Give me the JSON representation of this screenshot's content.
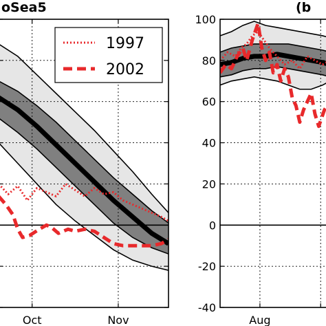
{
  "chart_data": [
    {
      "type": "line",
      "title": "oSea5",
      "xlabel": "",
      "ylabel": "",
      "x_tick_labels": [
        "Oct",
        "Nov"
      ],
      "x_days": {
        "range": [
          0,
          71
        ],
        "ticks": [
          14,
          50
        ]
      },
      "ylim": [
        -40,
        100
      ],
      "y_zero": 0,
      "grid": true,
      "legend_placement": "top-right",
      "legend": [
        {
          "label": "1997",
          "style": "dotted",
          "color": "#e8292b"
        },
        {
          "label": "2002",
          "style": "dashed",
          "color": "#e8292b"
        }
      ],
      "colors": {
        "median": "#000000",
        "inner_band": "#808080",
        "outer_band": "#e6e6e6",
        "event": "#e8292b"
      },
      "median": {
        "x": [
          0,
          8,
          16,
          24,
          32,
          40,
          48,
          56,
          64,
          71
        ],
        "y": [
          62,
          56,
          48,
          39,
          30,
          21,
          12,
          4,
          -4,
          -9
        ]
      },
      "inner_band": {
        "x": [
          0,
          8,
          16,
          24,
          32,
          40,
          48,
          56,
          64,
          71
        ],
        "low": [
          52,
          45,
          37,
          28,
          19,
          10,
          1,
          -6,
          -11,
          -14
        ],
        "high": [
          70,
          65,
          58,
          50,
          41,
          32,
          23,
          15,
          7,
          1
        ]
      },
      "outer_band": {
        "x": [
          0,
          8,
          16,
          24,
          32,
          40,
          48,
          56,
          64,
          71
        ],
        "low": [
          40,
          30,
          20,
          10,
          2,
          -5,
          -12,
          -17,
          -20,
          -22
        ],
        "high": [
          88,
          82,
          73,
          64,
          55,
          46,
          36,
          26,
          15,
          6
        ]
      },
      "series": [
        {
          "name": "1997",
          "style": "dotted",
          "x": [
            0,
            4,
            8,
            12,
            16,
            20,
            24,
            28,
            32,
            36,
            40,
            44,
            48,
            52,
            56,
            60,
            64,
            68,
            71
          ],
          "y": [
            20,
            15,
            19,
            12,
            18,
            16,
            14,
            20,
            17,
            14,
            18,
            15,
            16,
            12,
            10,
            8,
            6,
            4,
            2
          ]
        },
        {
          "name": "2002",
          "style": "dashed",
          "x": [
            0,
            3,
            6,
            8,
            10,
            13,
            17,
            20,
            22,
            25,
            29,
            32,
            36,
            40,
            44,
            48,
            52,
            56,
            60,
            64,
            68,
            71
          ],
          "y": [
            14,
            10,
            5,
            -2,
            -6,
            -5,
            -2,
            0,
            -1,
            -4,
            -2,
            -3,
            -2,
            -3,
            -6,
            -9,
            -10,
            -10,
            -10,
            -10,
            -9,
            -7
          ]
        }
      ]
    },
    {
      "type": "line",
      "title": "(b",
      "xlabel": "",
      "ylabel": "",
      "x_tick_labels": [
        "Aug"
      ],
      "x_days": {
        "range": [
          0,
          58
        ],
        "ticks": [
          21,
          53
        ]
      },
      "ylim": [
        -40,
        100
      ],
      "y_ticks": [
        100,
        80,
        60,
        40,
        20,
        0,
        -20,
        -40
      ],
      "y_zero": 0,
      "grid": true,
      "colors": {
        "median": "#000000",
        "inner_band": "#808080",
        "outer_band": "#e6e6e6",
        "event": "#e8292b"
      },
      "median": {
        "x": [
          0,
          6,
          12,
          18,
          24,
          30,
          36,
          42,
          48,
          54,
          58
        ],
        "y": [
          78,
          79,
          81,
          82,
          82,
          83,
          82,
          81,
          80,
          79,
          78
        ]
      },
      "inner_band": {
        "x": [
          0,
          6,
          12,
          18,
          24,
          30,
          36,
          42,
          48,
          54,
          58
        ],
        "low": [
          72,
          73,
          75,
          76,
          76,
          77,
          76,
          75,
          74,
          73,
          72
        ],
        "high": [
          84,
          86,
          87,
          88,
          88,
          88,
          88,
          87,
          86,
          85,
          84
        ]
      },
      "outer_band": {
        "x": [
          0,
          6,
          12,
          18,
          24,
          30,
          36,
          42,
          48,
          54,
          58
        ],
        "low": [
          68,
          70,
          71,
          72,
          71,
          70,
          68,
          66,
          66,
          68,
          70
        ],
        "high": [
          92,
          94,
          97,
          99,
          97,
          96,
          95,
          94,
          93,
          92,
          91
        ]
      },
      "series": [
        {
          "name": "1997",
          "style": "dotted",
          "x": [
            0,
            4,
            8,
            11,
            14,
            17,
            20,
            23,
            26,
            30,
            34,
            38,
            42,
            46,
            50,
            54,
            58
          ],
          "y": [
            80,
            84,
            82,
            86,
            88,
            92,
            94,
            90,
            86,
            82,
            78,
            80,
            76,
            82,
            80,
            78,
            80
          ]
        },
        {
          "name": "2002",
          "style": "dashed",
          "x": [
            0,
            3,
            6,
            9,
            12,
            14,
            17,
            20,
            22,
            24,
            26,
            28,
            30,
            32,
            34,
            36,
            38,
            40,
            42,
            44,
            46,
            48,
            50,
            52,
            55,
            58
          ],
          "y": [
            74,
            78,
            76,
            82,
            86,
            80,
            90,
            98,
            86,
            80,
            84,
            74,
            78,
            70,
            76,
            72,
            62,
            58,
            50,
            56,
            60,
            64,
            54,
            48,
            56,
            60
          ]
        }
      ]
    }
  ]
}
